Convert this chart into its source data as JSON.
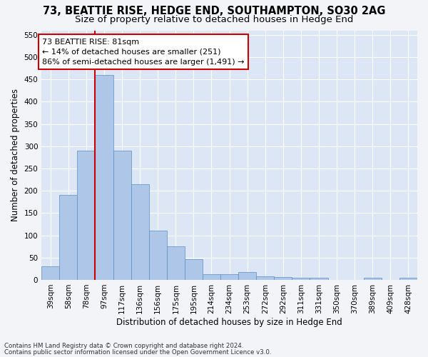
{
  "title1": "73, BEATTIE RISE, HEDGE END, SOUTHAMPTON, SO30 2AG",
  "title2": "Size of property relative to detached houses in Hedge End",
  "xlabel": "Distribution of detached houses by size in Hedge End",
  "ylabel": "Number of detached properties",
  "footnote1": "Contains HM Land Registry data © Crown copyright and database right 2024.",
  "footnote2": "Contains public sector information licensed under the Open Government Licence v3.0.",
  "annotation_line1": "73 BEATTIE RISE: 81sqm",
  "annotation_line2": "← 14% of detached houses are smaller (251)",
  "annotation_line3": "86% of semi-detached houses are larger (1,491) →",
  "bin_labels": [
    "39sqm",
    "58sqm",
    "78sqm",
    "97sqm",
    "117sqm",
    "136sqm",
    "156sqm",
    "175sqm",
    "195sqm",
    "214sqm",
    "234sqm",
    "253sqm",
    "272sqm",
    "292sqm",
    "311sqm",
    "331sqm",
    "350sqm",
    "370sqm",
    "389sqm",
    "409sqm",
    "428sqm"
  ],
  "bar_heights": [
    30,
    190,
    290,
    460,
    290,
    215,
    110,
    75,
    47,
    12,
    12,
    18,
    8,
    7,
    5,
    4,
    0,
    0,
    5,
    0,
    4
  ],
  "bar_color": "#aec6e8",
  "bar_edge_color": "#5a8fc2",
  "red_line_bin_idx": 2.5,
  "ylim": [
    0,
    560
  ],
  "yticks": [
    0,
    50,
    100,
    150,
    200,
    250,
    300,
    350,
    400,
    450,
    500,
    550
  ],
  "background_color": "#dce6f5",
  "grid_color": "#ffffff",
  "fig_bg_color": "#f2f4f8",
  "annotation_box_edge": "#cc0000",
  "red_line_color": "#cc0000",
  "title_fontsize": 10.5,
  "subtitle_fontsize": 9.5,
  "axis_label_fontsize": 8.5,
  "tick_fontsize": 7.5,
  "annotation_fontsize": 8
}
